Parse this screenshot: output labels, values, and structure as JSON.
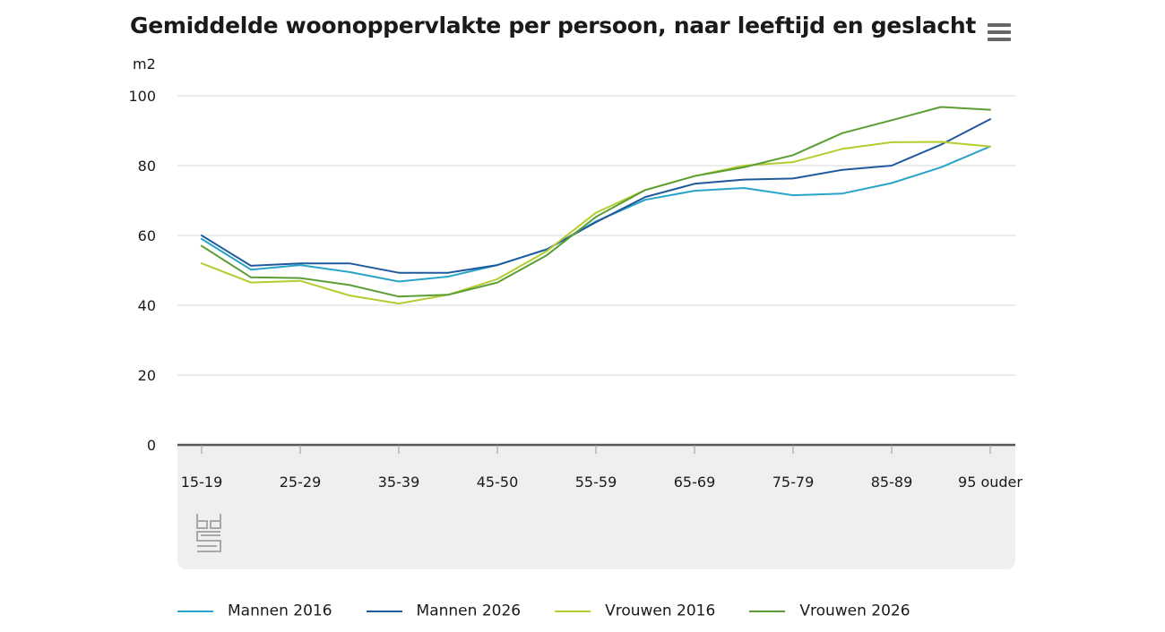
{
  "title": "Gemiddelde woonoppervlakte per persoon, naar leeftijd en geslacht",
  "menu_icon": "hamburger-menu-icon",
  "logo_icon": "cbs-logo-icon",
  "chart_data": {
    "type": "line",
    "title": "Gemiddelde woonoppervlakte per persoon, naar leeftijd en geslacht",
    "ylabel": "m2",
    "xlabel": "",
    "ylim": [
      0,
      100
    ],
    "yticks": [
      0,
      20,
      40,
      60,
      80,
      100
    ],
    "grid": true,
    "legend_position": "bottom",
    "x_tick_labels": [
      "15-19",
      "25-29",
      "35-39",
      "45-50",
      "55-59",
      "65-69",
      "75-79",
      "85-89",
      "95 ouder"
    ],
    "x_tick_indices": [
      0,
      2,
      4,
      6,
      8,
      10,
      12,
      14,
      16
    ],
    "point_count": 17,
    "series": [
      {
        "name": "Mannen 2016",
        "color": "#2aa3c8",
        "values": [
          59,
          50.2,
          51.5,
          49.5,
          46.8,
          48.2,
          51.5,
          56,
          64,
          70.2,
          72.8,
          73.6,
          71.5,
          72,
          75,
          79.5,
          85.5
        ]
      },
      {
        "name": "Mannen 2026",
        "color": "#1f5a9c",
        "values": [
          60,
          51.3,
          52,
          52,
          49.3,
          49.3,
          51.5,
          56,
          63.8,
          71,
          74.8,
          76,
          76.3,
          78.8,
          80,
          86,
          93.3
        ]
      },
      {
        "name": "Vrouwen 2016",
        "color": "#b5cc2e",
        "values": [
          52,
          46.5,
          47,
          42.8,
          40.5,
          43,
          47.5,
          55.5,
          66.5,
          73,
          77,
          80,
          81,
          84.8,
          86.7,
          86.8,
          85.5
        ]
      },
      {
        "name": "Vrouwen 2026",
        "color": "#5a9e34",
        "values": [
          57,
          48,
          47.8,
          45.8,
          42.5,
          43,
          46.5,
          54.3,
          65.3,
          73,
          77,
          79.5,
          83,
          89.3,
          93,
          96.8,
          96
        ]
      }
    ]
  }
}
